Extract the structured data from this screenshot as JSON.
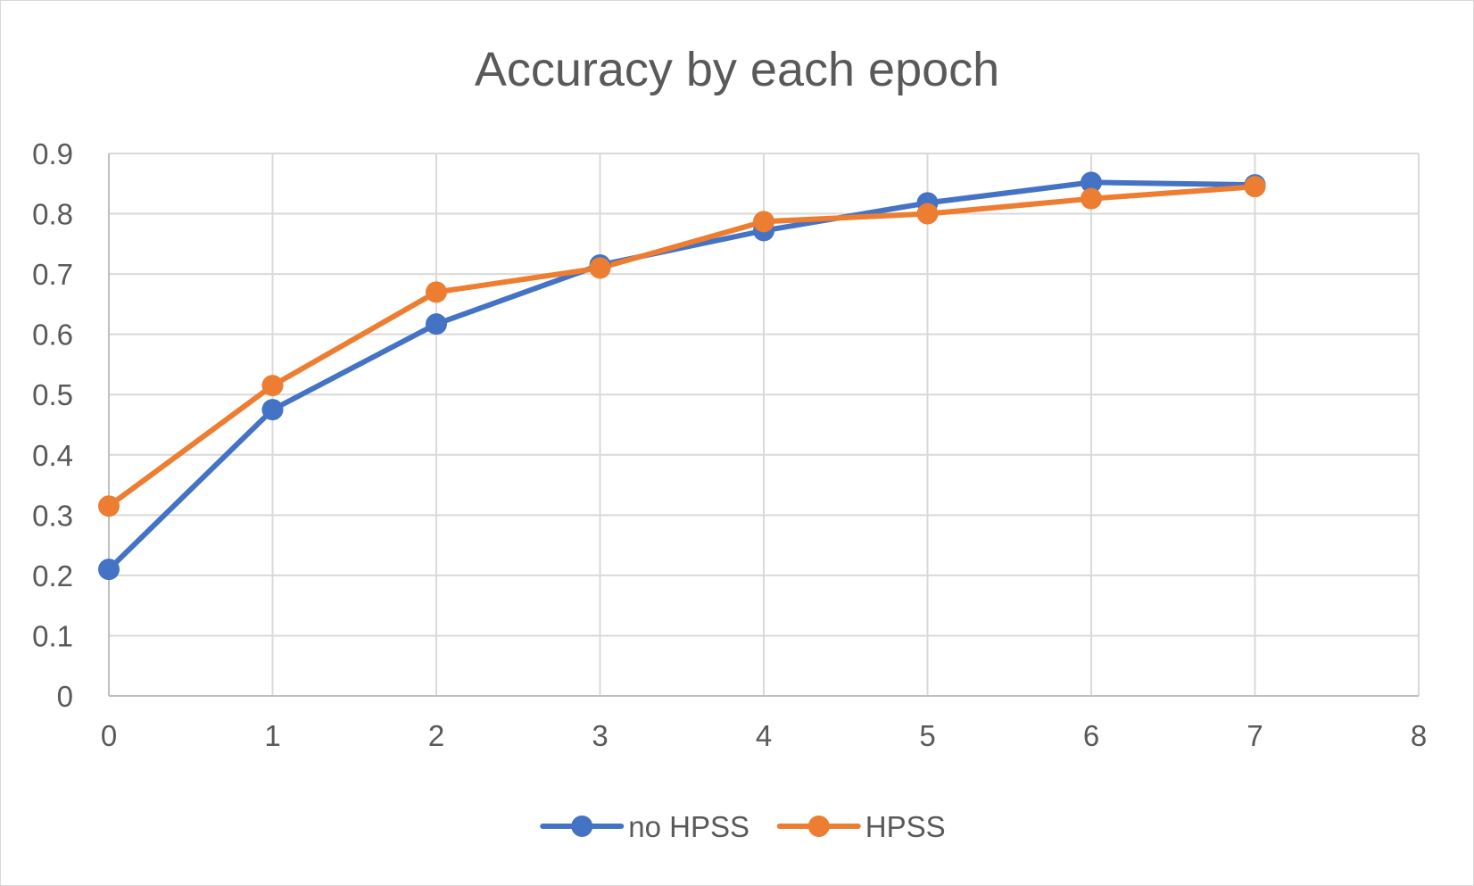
{
  "chart_data": {
    "type": "line",
    "title": "Accuracy by each epoch",
    "xlabel": "",
    "ylabel": "",
    "xlim": [
      0,
      8
    ],
    "ylim": [
      0,
      0.9
    ],
    "x_ticks": [
      "0",
      "1",
      "2",
      "3",
      "4",
      "5",
      "6",
      "7",
      "8"
    ],
    "y_ticks": [
      "0",
      "0.1",
      "0.2",
      "0.3",
      "0.4",
      "0.5",
      "0.6",
      "0.7",
      "0.8",
      "0.9"
    ],
    "grid": true,
    "legend_position": "bottom",
    "series": [
      {
        "name": "no HPSS",
        "color": "#4472c4",
        "x": [
          0,
          1,
          2,
          3,
          4,
          5,
          6,
          7
        ],
        "values": [
          0.21,
          0.475,
          0.617,
          0.715,
          0.772,
          0.818,
          0.852,
          0.848
        ]
      },
      {
        "name": "HPSS",
        "color": "#ed7d31",
        "x": [
          0,
          1,
          2,
          3,
          4,
          5,
          6,
          7
        ],
        "values": [
          0.315,
          0.515,
          0.67,
          0.71,
          0.787,
          0.8,
          0.825,
          0.845
        ]
      }
    ]
  }
}
